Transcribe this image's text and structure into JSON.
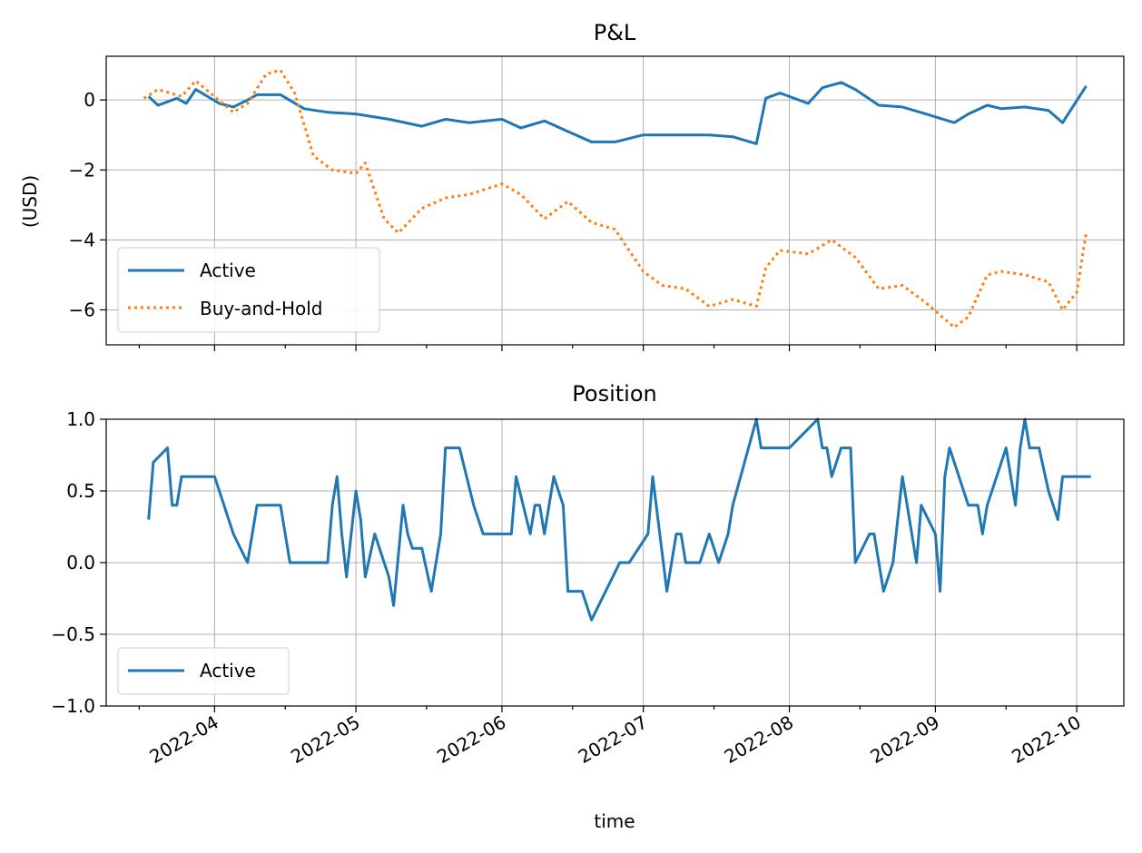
{
  "chart_data": [
    {
      "type": "line",
      "title": "P&L",
      "ylabel": "(USD)",
      "xlabel": "",
      "ylim": [
        -7.0,
        1.25
      ],
      "yticks": [
        0,
        -2,
        -4,
        -6
      ],
      "ytick_labels": [
        "0",
        "−2",
        "−4",
        "−6"
      ],
      "grid": true,
      "legend": "lower-left",
      "x_range": [
        "2022-03-09",
        "2022-10-11"
      ],
      "series": [
        {
          "name": "Active",
          "color": "#1f77b4",
          "style": "solid",
          "x": [
            "2022-03-18",
            "2022-03-20",
            "2022-03-24",
            "2022-03-26",
            "2022-03-28",
            "2022-04-02",
            "2022-04-05",
            "2022-04-08",
            "2022-04-10",
            "2022-04-12",
            "2022-04-15",
            "2022-04-20",
            "2022-04-25",
            "2022-05-01",
            "2022-05-08",
            "2022-05-15",
            "2022-05-20",
            "2022-05-25",
            "2022-06-01",
            "2022-06-05",
            "2022-06-10",
            "2022-06-15",
            "2022-06-20",
            "2022-06-25",
            "2022-07-01",
            "2022-07-05",
            "2022-07-10",
            "2022-07-15",
            "2022-07-20",
            "2022-07-25",
            "2022-07-27",
            "2022-07-30",
            "2022-08-05",
            "2022-08-08",
            "2022-08-12",
            "2022-08-15",
            "2022-08-20",
            "2022-08-25",
            "2022-08-30",
            "2022-09-05",
            "2022-09-08",
            "2022-09-12",
            "2022-09-15",
            "2022-09-20",
            "2022-09-25",
            "2022-09-28",
            "2022-10-03"
          ],
          "y": [
            0.1,
            -0.15,
            0.05,
            -0.1,
            0.3,
            -0.1,
            -0.2,
            0.0,
            0.15,
            0.15,
            0.15,
            -0.25,
            -0.35,
            -0.4,
            -0.55,
            -0.75,
            -0.55,
            -0.65,
            -0.55,
            -0.8,
            -0.6,
            -0.9,
            -1.2,
            -1.2,
            -1.0,
            -1.0,
            -1.0,
            -1.0,
            -1.05,
            -1.25,
            0.05,
            0.2,
            -0.1,
            0.35,
            0.5,
            0.3,
            -0.15,
            -0.2,
            -0.4,
            -0.65,
            -0.4,
            -0.15,
            -0.25,
            -0.2,
            -0.3,
            -0.65,
            0.4
          ]
        },
        {
          "name": "Buy-and-Hold",
          "color": "#ff7f0e",
          "style": "dotted",
          "x": [
            "2022-03-17",
            "2022-03-20",
            "2022-03-25",
            "2022-03-28",
            "2022-04-05",
            "2022-04-08",
            "2022-04-12",
            "2022-04-15",
            "2022-04-18",
            "2022-04-22",
            "2022-04-26",
            "2022-05-01",
            "2022-05-03",
            "2022-05-07",
            "2022-05-10",
            "2022-05-15",
            "2022-05-20",
            "2022-05-25",
            "2022-06-01",
            "2022-06-05",
            "2022-06-10",
            "2022-06-15",
            "2022-06-20",
            "2022-06-25",
            "2022-07-01",
            "2022-07-05",
            "2022-07-10",
            "2022-07-15",
            "2022-07-20",
            "2022-07-25",
            "2022-07-27",
            "2022-07-30",
            "2022-08-05",
            "2022-08-10",
            "2022-08-15",
            "2022-08-20",
            "2022-08-25",
            "2022-08-30",
            "2022-09-05",
            "2022-09-08",
            "2022-09-12",
            "2022-09-15",
            "2022-09-20",
            "2022-09-25",
            "2022-09-28",
            "2022-10-01",
            "2022-10-03"
          ],
          "y": [
            0.05,
            0.3,
            0.1,
            0.55,
            -0.35,
            -0.1,
            0.75,
            0.85,
            0.2,
            -1.6,
            -2.0,
            -2.1,
            -1.8,
            -3.4,
            -3.8,
            -3.1,
            -2.8,
            -2.7,
            -2.4,
            -2.7,
            -3.4,
            -2.9,
            -3.5,
            -3.7,
            -4.9,
            -5.3,
            -5.4,
            -5.9,
            -5.7,
            -5.9,
            -4.8,
            -4.3,
            -4.4,
            -4.0,
            -4.5,
            -5.4,
            -5.3,
            -5.8,
            -6.5,
            -6.2,
            -5.0,
            -4.9,
            -5.0,
            -5.2,
            -6.0,
            -5.5,
            -3.8
          ]
        }
      ]
    },
    {
      "type": "line",
      "title": "Position",
      "ylabel": "",
      "xlabel": "time",
      "ylim": [
        -1.0,
        1.0
      ],
      "yticks": [
        1.0,
        0.5,
        0.0,
        -0.5,
        -1.0
      ],
      "ytick_labels": [
        "1.0",
        "0.5",
        "0.0",
        "−0.5",
        "−1.0"
      ],
      "grid": true,
      "legend": "lower-left",
      "x_range": [
        "2022-03-09",
        "2022-10-11"
      ],
      "xtick_labels": [
        "2022-04",
        "2022-05",
        "2022-06",
        "2022-07",
        "2022-08",
        "2022-09",
        "2022-10"
      ],
      "series": [
        {
          "name": "Active",
          "color": "#1f77b4",
          "style": "solid",
          "x": [
            "2022-03-18",
            "2022-03-19",
            "2022-03-22",
            "2022-03-23",
            "2022-03-24",
            "2022-03-25",
            "2022-03-26",
            "2022-04-01",
            "2022-04-05",
            "2022-04-08",
            "2022-04-10",
            "2022-04-15",
            "2022-04-17",
            "2022-04-22",
            "2022-04-25",
            "2022-04-26",
            "2022-04-27",
            "2022-04-28",
            "2022-04-29",
            "2022-05-01",
            "2022-05-02",
            "2022-05-03",
            "2022-05-05",
            "2022-05-08",
            "2022-05-09",
            "2022-05-11",
            "2022-05-12",
            "2022-05-13",
            "2022-05-15",
            "2022-05-17",
            "2022-05-18",
            "2022-05-19",
            "2022-05-20",
            "2022-05-23",
            "2022-05-26",
            "2022-05-28",
            "2022-06-03",
            "2022-06-04",
            "2022-06-07",
            "2022-06-08",
            "2022-06-09",
            "2022-06-10",
            "2022-06-12",
            "2022-06-14",
            "2022-06-15",
            "2022-06-18",
            "2022-06-20",
            "2022-06-26",
            "2022-06-28",
            "2022-07-02",
            "2022-07-03",
            "2022-07-06",
            "2022-07-07",
            "2022-07-08",
            "2022-07-09",
            "2022-07-10",
            "2022-07-13",
            "2022-07-15",
            "2022-07-17",
            "2022-07-19",
            "2022-07-20",
            "2022-07-25",
            "2022-07-26",
            "2022-07-27",
            "2022-07-28",
            "2022-08-01",
            "2022-08-07",
            "2022-08-08",
            "2022-08-09",
            "2022-08-10",
            "2022-08-12",
            "2022-08-14",
            "2022-08-15",
            "2022-08-18",
            "2022-08-19",
            "2022-08-21",
            "2022-08-23",
            "2022-08-25",
            "2022-08-26",
            "2022-08-28",
            "2022-08-29",
            "2022-09-01",
            "2022-09-02",
            "2022-09-03",
            "2022-09-04",
            "2022-09-08",
            "2022-09-10",
            "2022-09-11",
            "2022-09-12",
            "2022-09-16",
            "2022-09-18",
            "2022-09-19",
            "2022-09-20",
            "2022-09-21",
            "2022-09-23",
            "2022-09-25",
            "2022-09-27",
            "2022-09-28",
            "2022-09-29",
            "2022-10-03",
            "2022-10-04"
          ],
          "y": [
            0.3,
            0.7,
            0.8,
            0.4,
            0.4,
            0.6,
            0.6,
            0.6,
            0.2,
            0.0,
            0.4,
            0.4,
            0.0,
            0.0,
            0.0,
            0.4,
            0.6,
            0.2,
            -0.1,
            0.5,
            0.3,
            -0.1,
            0.2,
            -0.1,
            -0.3,
            0.4,
            0.2,
            0.1,
            0.1,
            -0.2,
            0.0,
            0.2,
            0.8,
            0.8,
            0.4,
            0.2,
            0.2,
            0.6,
            0.2,
            0.4,
            0.4,
            0.2,
            0.6,
            0.4,
            -0.2,
            -0.2,
            -0.4,
            0.0,
            0.0,
            0.2,
            0.6,
            -0.2,
            0.0,
            0.2,
            0.2,
            0.0,
            0.0,
            0.2,
            0.0,
            0.2,
            0.4,
            1.0,
            0.8,
            0.8,
            0.8,
            0.8,
            1.0,
            0.8,
            0.8,
            0.6,
            0.8,
            0.8,
            0.0,
            0.2,
            0.2,
            -0.2,
            0.0,
            0.6,
            0.4,
            0.0,
            0.4,
            0.2,
            -0.2,
            0.6,
            0.8,
            0.4,
            0.4,
            0.2,
            0.4,
            0.8,
            0.4,
            0.8,
            1.0,
            0.8,
            0.8,
            0.5,
            0.3,
            0.6,
            0.6,
            0.6,
            0.6
          ]
        }
      ]
    }
  ]
}
